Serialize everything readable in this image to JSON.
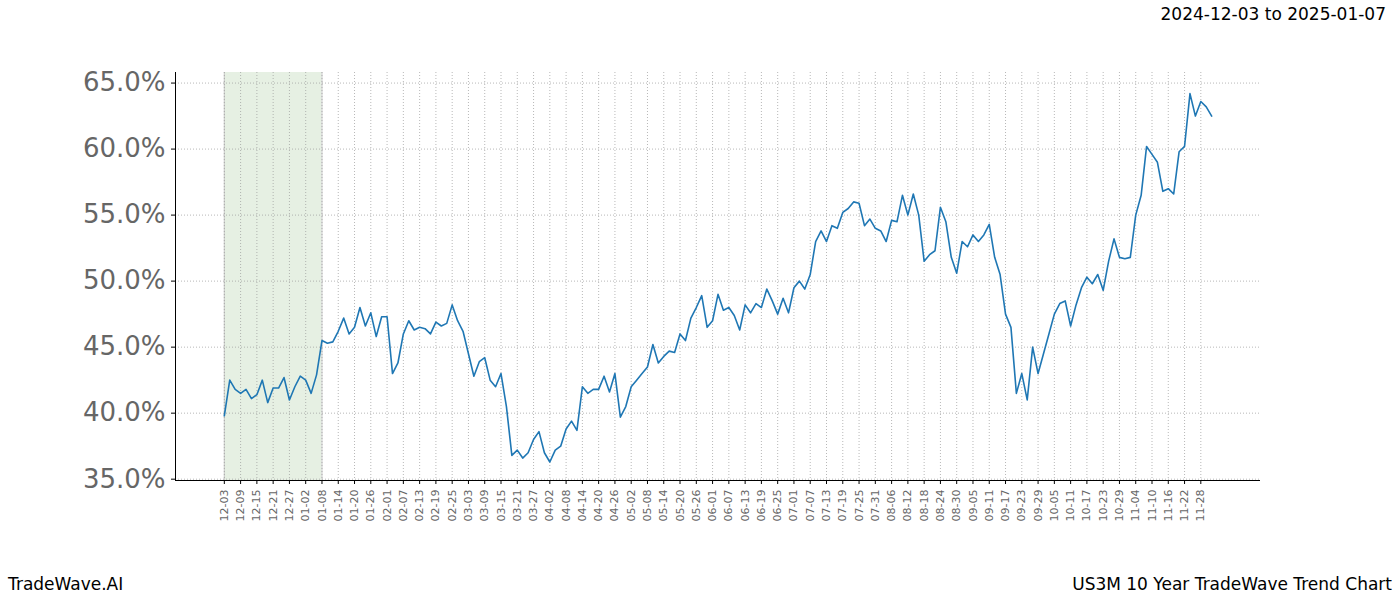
{
  "chart_data": {
    "type": "line",
    "title": "2024-12-03 to 2025-01-07",
    "caption_left": "TradeWave.AI",
    "caption_right": "US3M 10 Year TradeWave Trend Chart",
    "categories": [
      "12-03",
      null,
      null,
      "12-09",
      null,
      null,
      "12-15",
      null,
      null,
      "12-21",
      null,
      null,
      "12-27",
      null,
      null,
      "01-02",
      null,
      null,
      "01-08",
      null,
      null,
      "01-14",
      null,
      null,
      "01-20",
      null,
      null,
      "01-26",
      null,
      null,
      "02-01",
      null,
      null,
      "02-07",
      null,
      null,
      "02-13",
      null,
      null,
      "02-19",
      null,
      null,
      "02-25",
      null,
      null,
      "03-03",
      null,
      null,
      "03-09",
      null,
      null,
      "03-15",
      null,
      null,
      "03-21",
      null,
      null,
      "03-27",
      null,
      null,
      "04-02",
      null,
      null,
      "04-08",
      null,
      null,
      "04-14",
      null,
      null,
      "04-20",
      null,
      null,
      "04-26",
      null,
      null,
      "05-02",
      null,
      null,
      "05-08",
      null,
      null,
      "05-14",
      null,
      null,
      "05-20",
      null,
      null,
      "05-26",
      null,
      null,
      "06-01",
      null,
      null,
      "06-07",
      null,
      null,
      "06-13",
      null,
      null,
      "06-19",
      null,
      null,
      "06-25",
      null,
      null,
      "07-01",
      null,
      null,
      "07-07",
      null,
      null,
      "07-13",
      null,
      null,
      "07-19",
      null,
      null,
      "07-25",
      null,
      null,
      "07-31",
      null,
      null,
      "08-06",
      null,
      null,
      "08-12",
      null,
      null,
      "08-18",
      null,
      null,
      "08-24",
      null,
      null,
      "08-30",
      null,
      null,
      "09-05",
      null,
      null,
      "09-11",
      null,
      null,
      "09-17",
      null,
      null,
      "09-23",
      null,
      null,
      "09-29",
      null,
      null,
      "10-05",
      null,
      null,
      "10-11",
      null,
      null,
      "10-17",
      null,
      null,
      "10-23",
      null,
      null,
      "10-29",
      null,
      null,
      "11-04",
      null,
      null,
      "11-10",
      null,
      null,
      "11-16",
      null,
      null,
      "11-22",
      null,
      null,
      "11-28",
      null,
      null
    ],
    "values": [
      39.8,
      42.5,
      41.8,
      41.5,
      41.8,
      41.1,
      41.4,
      42.5,
      40.8,
      41.9,
      41.9,
      42.7,
      41.0,
      42.0,
      42.8,
      42.5,
      41.5,
      42.9,
      45.5,
      45.3,
      45.4,
      46.2,
      47.2,
      46.0,
      46.5,
      48.0,
      46.6,
      47.6,
      45.8,
      47.3,
      47.3,
      43.0,
      43.8,
      46.0,
      47.0,
      46.3,
      46.5,
      46.4,
      46.0,
      46.9,
      46.6,
      46.8,
      48.2,
      47.0,
      46.2,
      44.5,
      42.8,
      43.9,
      44.2,
      42.5,
      42.0,
      43.0,
      40.5,
      36.8,
      37.2,
      36.6,
      37.0,
      38.0,
      38.6,
      37.0,
      36.3,
      37.2,
      37.5,
      38.8,
      39.4,
      38.7,
      42.0,
      41.5,
      41.8,
      41.8,
      42.8,
      41.6,
      43.0,
      39.7,
      40.5,
      42.0,
      42.5,
      43.0,
      43.5,
      45.2,
      43.8,
      44.3,
      44.7,
      44.6,
      46.0,
      45.5,
      47.2,
      48.0,
      48.9,
      46.5,
      47.0,
      49.0,
      47.8,
      48.0,
      47.4,
      46.3,
      48.2,
      47.6,
      48.3,
      48.0,
      49.4,
      48.5,
      47.5,
      48.7,
      47.6,
      49.5,
      50.0,
      49.4,
      50.5,
      53.0,
      53.8,
      53.0,
      54.2,
      54.0,
      55.2,
      55.5,
      56.0,
      55.9,
      54.2,
      54.7,
      54.0,
      53.8,
      53.0,
      54.6,
      54.5,
      56.5,
      55.0,
      56.6,
      55.0,
      51.5,
      52.0,
      52.3,
      55.6,
      54.5,
      51.8,
      50.6,
      53.0,
      52.6,
      53.5,
      53.0,
      53.5,
      54.3,
      51.8,
      50.5,
      47.5,
      46.5,
      41.5,
      43.0,
      41.0,
      45.0,
      43.0,
      44.5,
      46.0,
      47.5,
      48.3,
      48.5,
      46.6,
      48.2,
      49.5,
      50.3,
      49.8,
      50.5,
      49.3,
      51.5,
      53.2,
      51.8,
      51.7,
      51.8,
      55.0,
      56.5,
      60.2,
      59.6,
      59.0,
      56.8,
      57.0,
      56.6,
      59.8,
      60.2,
      64.2,
      62.5,
      63.6,
      63.2,
      62.5
    ],
    "color": "#1f77b4",
    "ylim": [
      34.9,
      65.8
    ],
    "yticks": [
      {
        "value": 35,
        "label": "35.0%"
      },
      {
        "value": 40,
        "label": "40.0%"
      },
      {
        "value": 45,
        "label": "45.0%"
      },
      {
        "value": 50,
        "label": "50.0%"
      },
      {
        "value": 55,
        "label": "55.0%"
      },
      {
        "value": 60,
        "label": "60.0%"
      },
      {
        "value": 65,
        "label": "65.0%"
      }
    ],
    "shaded": {
      "from": "12-03",
      "to": "01-08"
    },
    "grid": true
  }
}
